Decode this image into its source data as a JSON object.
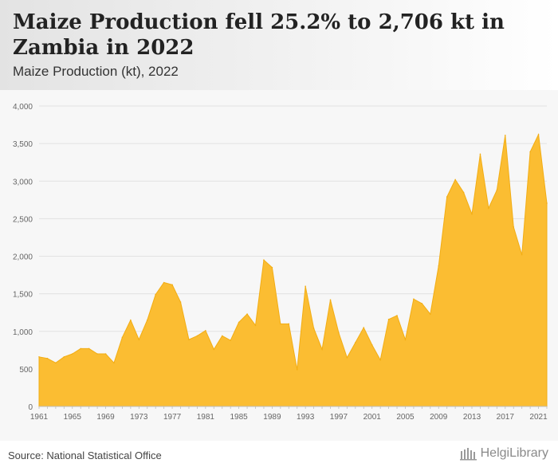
{
  "header": {
    "title": "Maize Production fell 25.2% to 2,706 kt in Zambia in 2022",
    "subtitle": "Maize Production (kt), 2022"
  },
  "footer": {
    "source": "Source: National Statistical Office",
    "brand": "HelgiLibrary"
  },
  "colors": {
    "area_fill": "#fbbd32",
    "area_stroke": "#f2ad14",
    "grid": "#e2e2e2",
    "plot_bg": "#f7f7f7"
  },
  "chart_data": {
    "type": "area",
    "title": "Maize Production fell 25.2% to 2,706 kt in Zambia in 2022",
    "subtitle": "Maize Production (kt), 2022",
    "ylim": [
      0,
      4000
    ],
    "xlim": [
      1961,
      2022
    ],
    "y_ticks": [
      0,
      500,
      1000,
      1500,
      2000,
      2500,
      3000,
      3500,
      4000
    ],
    "y_tick_labels": [
      "0",
      "500",
      "1,000",
      "1,500",
      "2,000",
      "2,500",
      "3,000",
      "3,500",
      "4,000"
    ],
    "x_ticks": [
      1961,
      1965,
      1969,
      1973,
      1977,
      1981,
      1985,
      1989,
      1993,
      1997,
      2001,
      2005,
      2009,
      2013,
      2017,
      2021
    ],
    "grid": true,
    "x": [
      1961,
      1962,
      1963,
      1964,
      1965,
      1966,
      1967,
      1968,
      1969,
      1970,
      1971,
      1972,
      1973,
      1974,
      1975,
      1976,
      1977,
      1978,
      1979,
      1980,
      1981,
      1982,
      1983,
      1984,
      1985,
      1986,
      1987,
      1988,
      1989,
      1990,
      1991,
      1992,
      1993,
      1994,
      1995,
      1996,
      1997,
      1998,
      1999,
      2000,
      2001,
      2002,
      2003,
      2004,
      2005,
      2006,
      2007,
      2008,
      2009,
      2010,
      2011,
      2012,
      2013,
      2014,
      2015,
      2016,
      2017,
      2018,
      2019,
      2020,
      2021,
      2022
    ],
    "values": [
      660,
      640,
      580,
      660,
      700,
      770,
      770,
      700,
      700,
      580,
      920,
      1150,
      890,
      1150,
      1490,
      1650,
      1620,
      1390,
      890,
      940,
      1010,
      760,
      940,
      880,
      1120,
      1230,
      1080,
      1950,
      1850,
      1100,
      1100,
      490,
      1600,
      1040,
      760,
      1420,
      980,
      650,
      850,
      1050,
      820,
      620,
      1160,
      1210,
      890,
      1430,
      1370,
      1230,
      1870,
      2790,
      3020,
      2850,
      2560,
      3360,
      2640,
      2880,
      3610,
      2390,
      2020,
      3390,
      3620,
      2706
    ]
  }
}
